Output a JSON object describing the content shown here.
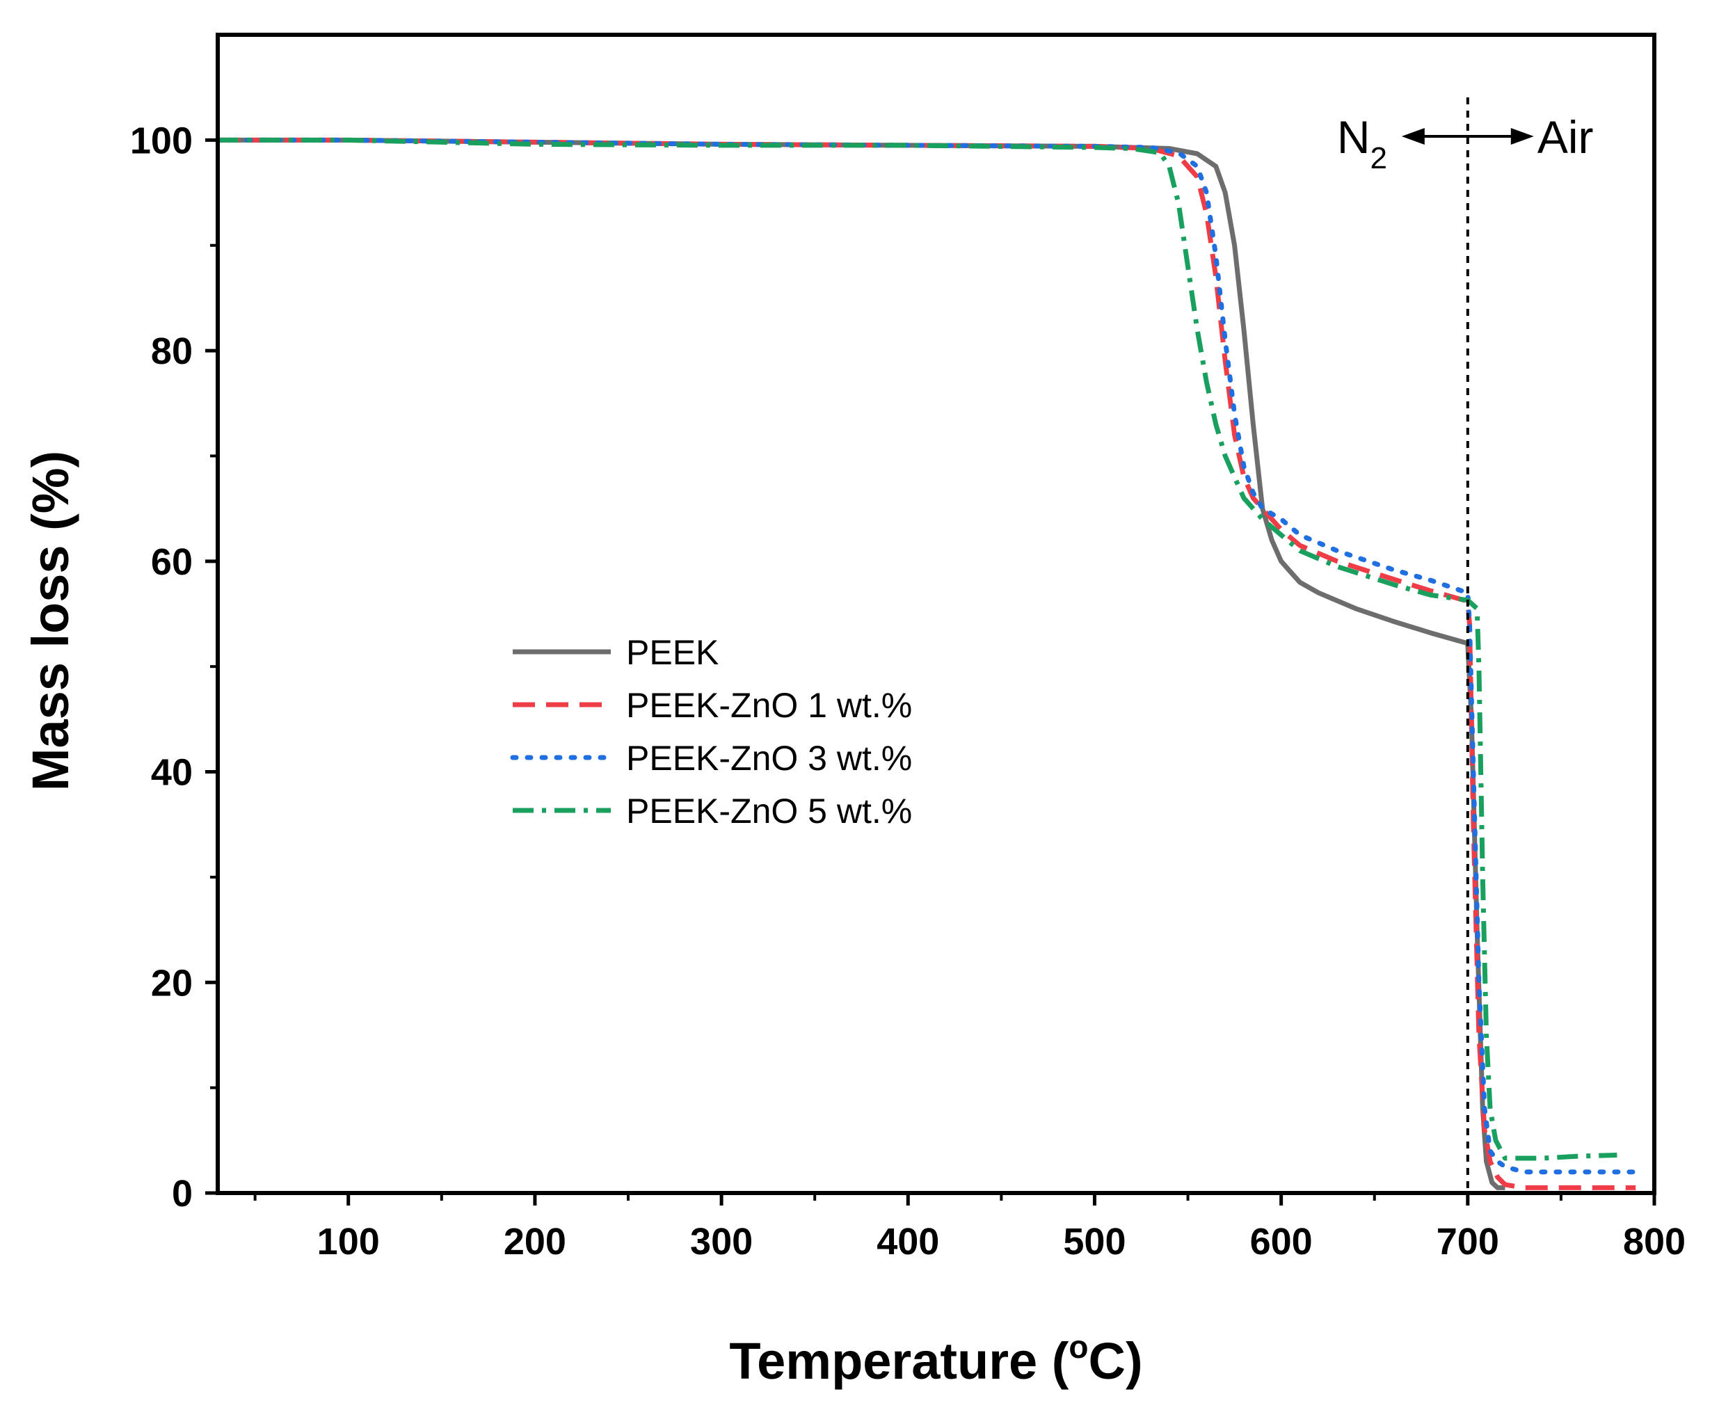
{
  "chart_data": {
    "type": "line",
    "xlabel": "Temperature (",
    "xlabel_degree": "o",
    "xlabel_unit": "C)",
    "ylabel": "Mass loss (%)",
    "xlim": [
      30,
      800
    ],
    "ylim": [
      0,
      110
    ],
    "x_ticks": [
      100,
      200,
      300,
      400,
      500,
      600,
      700,
      800
    ],
    "y_ticks": [
      0,
      20,
      40,
      60,
      80,
      100
    ],
    "legend_position": "center-left",
    "annotations": {
      "divider_x": 700,
      "left_label": "N",
      "left_label_sub": "2",
      "right_label": "Air"
    },
    "series": [
      {
        "name": "PEEK",
        "color": "#6d6d6d",
        "dash": "solid",
        "x": [
          30,
          100,
          200,
          300,
          400,
          500,
          540,
          555,
          565,
          570,
          575,
          580,
          585,
          590,
          595,
          600,
          605,
          610,
          620,
          640,
          660,
          680,
          700,
          702,
          705,
          708,
          710,
          713,
          716,
          720
        ],
        "y": [
          100,
          100,
          99.8,
          99.6,
          99.5,
          99.4,
          99.2,
          98.7,
          97.5,
          95,
          90,
          82,
          73,
          65,
          62,
          60,
          59,
          58,
          57,
          55.5,
          54.3,
          53.2,
          52.2,
          45,
          25,
          8,
          3,
          1,
          0.5,
          0.5
        ]
      },
      {
        "name": "PEEK-ZnO 1 wt.%",
        "color": "#ee3d47",
        "dash": "long-dash",
        "x": [
          30,
          100,
          200,
          300,
          400,
          500,
          530,
          545,
          555,
          560,
          565,
          570,
          575,
          580,
          585,
          590,
          595,
          600,
          610,
          630,
          660,
          680,
          700,
          701,
          703,
          706,
          709,
          712,
          716,
          720,
          730,
          790
        ],
        "y": [
          100,
          100,
          99.8,
          99.6,
          99.5,
          99.4,
          99.2,
          98.5,
          96.5,
          93,
          87,
          79,
          72,
          68,
          66,
          65,
          64,
          63,
          61.5,
          60,
          58.3,
          57.2,
          56.2,
          54,
          35,
          15,
          6,
          3,
          1.5,
          0.8,
          0.5,
          0.5
        ]
      },
      {
        "name": "PEEK-ZnO 3 wt.%",
        "color": "#1f6fe0",
        "dash": "dot",
        "x": [
          30,
          100,
          200,
          300,
          400,
          500,
          530,
          545,
          555,
          560,
          565,
          570,
          575,
          580,
          585,
          590,
          595,
          600,
          610,
          630,
          660,
          680,
          700,
          701,
          703,
          706,
          709,
          712,
          716,
          720,
          730,
          790
        ],
        "y": [
          100,
          100,
          99.8,
          99.6,
          99.5,
          99.4,
          99.3,
          98.8,
          97.5,
          95,
          89,
          81,
          74,
          69,
          66.5,
          65,
          64.5,
          64,
          62.5,
          61,
          59.2,
          58.2,
          57,
          54,
          40,
          20,
          8,
          4,
          3,
          2.5,
          2,
          2
        ]
      },
      {
        "name": "PEEK-ZnO 5 wt.%",
        "color": "#19a05f",
        "dash": "dash-dot",
        "x": [
          30,
          100,
          200,
          300,
          400,
          500,
          520,
          535,
          540,
          545,
          550,
          555,
          560,
          565,
          570,
          580,
          590,
          600,
          610,
          630,
          660,
          680,
          700,
          705,
          706,
          708,
          710,
          712,
          715,
          720,
          740,
          760,
          780
        ],
        "y": [
          100,
          100,
          99.6,
          99.5,
          99.5,
          99.3,
          99.2,
          98.8,
          97.5,
          94,
          88,
          82,
          77,
          73,
          70,
          66,
          64,
          62.5,
          61,
          59.5,
          57.8,
          56.8,
          56.3,
          55.5,
          50,
          30,
          15,
          8,
          5,
          3.3,
          3.3,
          3.5,
          3.6
        ]
      }
    ]
  }
}
